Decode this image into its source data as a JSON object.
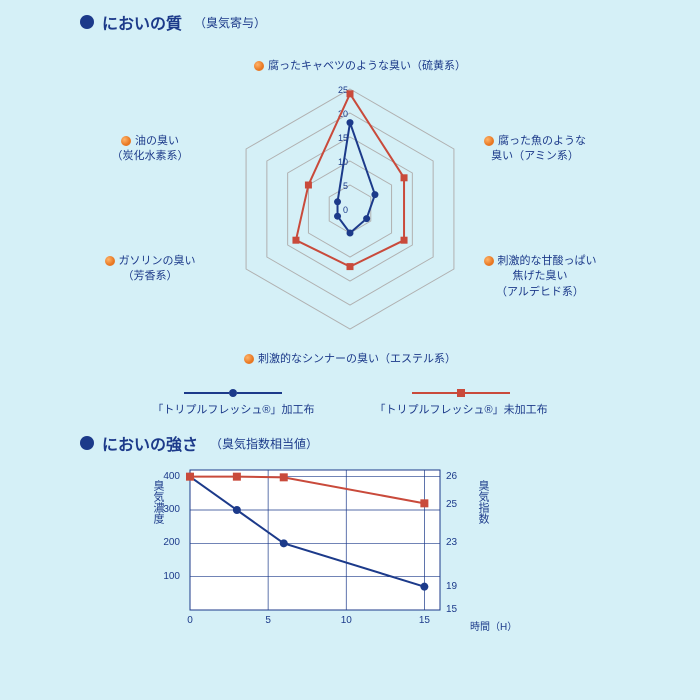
{
  "section1": {
    "title": "においの質",
    "subtitle": "（臭気寄与）"
  },
  "radar": {
    "rings": [
      5,
      10,
      15,
      20,
      25
    ],
    "ring_color": "#b0b0b0",
    "max": 25,
    "axes": [
      {
        "label_l1": "腐ったキャベツのような臭い（硫黄系）",
        "label_l2": ""
      },
      {
        "label_l1": "腐った魚のような",
        "label_l2": "臭い（アミン系）"
      },
      {
        "label_l1": "刺激的な甘酸っぱい",
        "label_l2": "焦げた臭い",
        "label_l3": "（アルデヒド系）"
      },
      {
        "label_l1": "刺激的なシンナーの臭い（エステル系）",
        "label_l2": ""
      },
      {
        "label_l1": "ガソリンの臭い",
        "label_l2": "（芳香系）"
      },
      {
        "label_l1": "油の臭い",
        "label_l2": "（炭化水素系）"
      }
    ],
    "tick_labels": [
      "0",
      "5",
      "10",
      "15",
      "20",
      "25"
    ],
    "series": [
      {
        "name": "「トリプルフレッシュ®」加工布",
        "color": "#1c3a8a",
        "marker": "circle",
        "values": [
          18,
          6,
          4,
          5,
          3,
          3
        ]
      },
      {
        "name": "「トリプルフレッシュ®」未加工布",
        "color": "#c94a3b",
        "marker": "square",
        "values": [
          24,
          13,
          13,
          12,
          13,
          10
        ]
      }
    ]
  },
  "section2": {
    "title": "においの強さ",
    "subtitle": "（臭気指数相当値）"
  },
  "linechart": {
    "x_title": "時間（H）",
    "y_left_title": "臭気濃度",
    "y_right_title": "臭気指数",
    "x_ticks": [
      0,
      5,
      10,
      15
    ],
    "y_left_ticks": [
      100,
      200,
      300,
      400
    ],
    "y_right_ticks": [
      15,
      19,
      23,
      25,
      26
    ],
    "y_left_range": [
      0,
      420
    ],
    "x_range": [
      0,
      16
    ],
    "grid_color": "#1c3a8a",
    "series": [
      {
        "color": "#1c3a8a",
        "marker": "circle",
        "points": [
          [
            0,
            400
          ],
          [
            3,
            300
          ],
          [
            6,
            200
          ],
          [
            15,
            70
          ]
        ]
      },
      {
        "color": "#c94a3b",
        "marker": "square",
        "points": [
          [
            0,
            400
          ],
          [
            3,
            400
          ],
          [
            6,
            398
          ],
          [
            15,
            320
          ]
        ]
      }
    ]
  }
}
